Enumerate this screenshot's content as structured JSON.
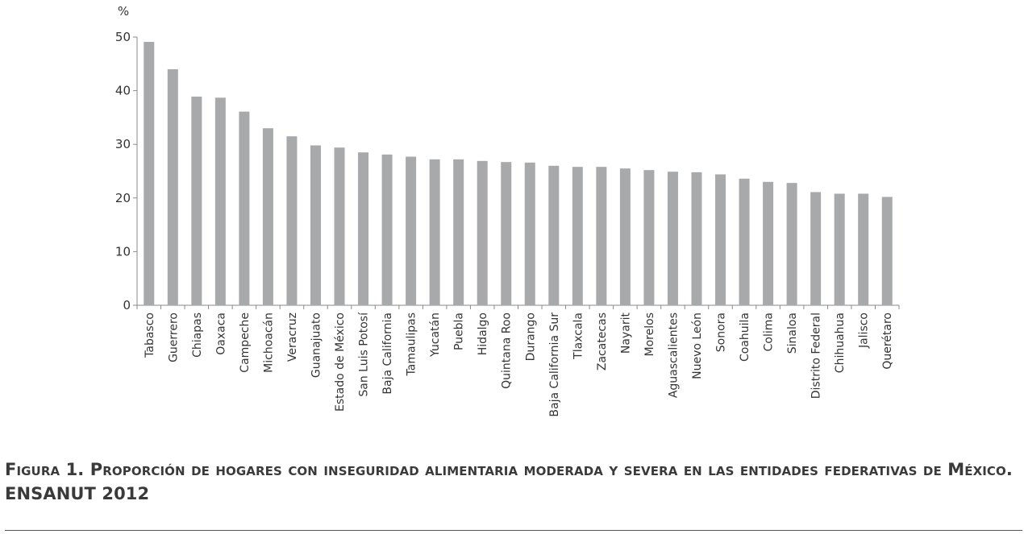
{
  "chart_data": {
    "type": "bar",
    "ylabel": "%",
    "ylim": [
      0,
      50
    ],
    "yticks": [
      "0",
      "10",
      "20",
      "30",
      "40",
      "50"
    ],
    "categories": [
      "Tabasco",
      "Guerrero",
      "Chiapas",
      "Oaxaca",
      "Campeche",
      "Michoacán",
      "Veracruz",
      "Guanajuato",
      "Estado de México",
      "San Luis Potosí",
      "Baja California",
      "Tamaulipas",
      "Yucatán",
      "Puebla",
      "Hidalgo",
      "Quintana Roo",
      "Durango",
      "Baja California Sur",
      "Tlaxcala",
      "Zacatecas",
      "Nayarit",
      "Morelos",
      "Aguascalientes",
      "Nuevo León",
      "Sonora",
      "Coahuila",
      "Colima",
      "Sinaloa",
      "Distrito Federal",
      "Chihuahua",
      "Jalisco",
      "Querétaro"
    ],
    "values": [
      49.1,
      44.0,
      38.9,
      38.7,
      36.1,
      33.0,
      31.5,
      29.8,
      29.4,
      28.5,
      28.1,
      27.7,
      27.2,
      27.2,
      26.9,
      26.7,
      26.6,
      26.0,
      25.8,
      25.8,
      25.5,
      25.2,
      24.9,
      24.8,
      24.4,
      23.6,
      23.0,
      22.8,
      21.1,
      20.8,
      20.8,
      20.2
    ],
    "colors": {
      "bar": "#a8a9ab",
      "axis": "#8a8a8a",
      "text": "#333333"
    },
    "grid": false,
    "legend": "none"
  },
  "caption": {
    "text": "Figura 1. Proporción de hogares con inseguridad alimentaria moderada y severa en las entidades federativas de México. ENSANUT 2012"
  }
}
